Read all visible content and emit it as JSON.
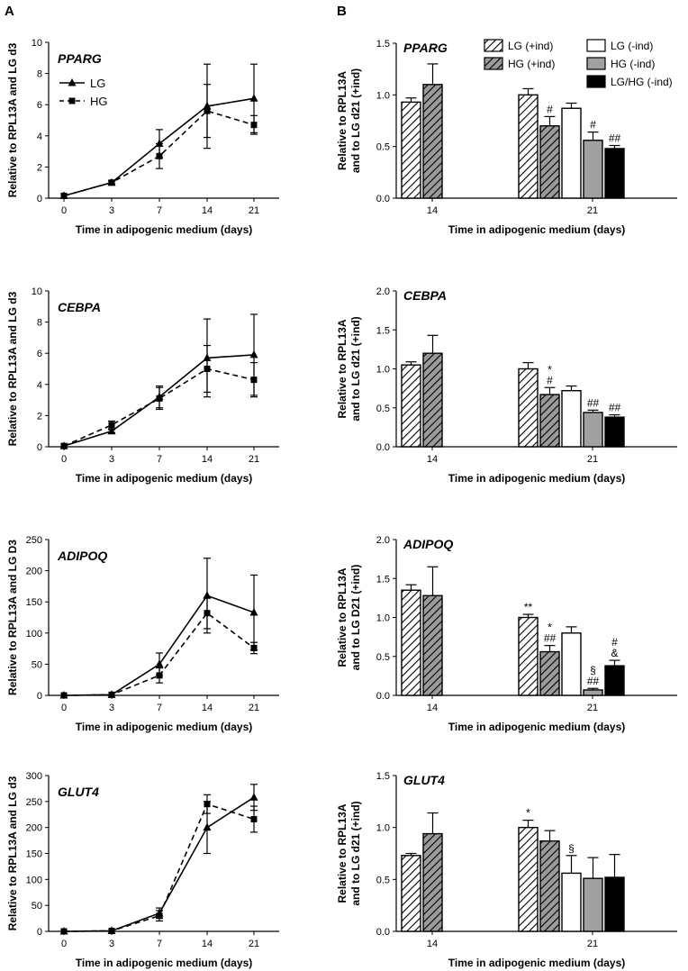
{
  "panel_labels": [
    "A",
    "B"
  ],
  "chart_data": [
    {
      "id": "A1",
      "type": "line",
      "title": "PPARG",
      "xlabel": "Time in adipogenic medium (days)",
      "ylabel": "Relative to RPL13A and LG d3",
      "x": [
        0,
        3,
        7,
        14,
        21
      ],
      "x_ticks": [
        "0",
        "3",
        "7",
        "14",
        "21"
      ],
      "ylim": [
        0,
        10
      ],
      "y_ticks": [
        0,
        2,
        4,
        6,
        8,
        10
      ],
      "legend": "top-left",
      "series": [
        {
          "name": "LG",
          "marker": "triangle",
          "dash": "solid",
          "values": [
            0.15,
            1.0,
            3.5,
            5.9,
            6.4
          ],
          "err": [
            0.05,
            0.1,
            0.9,
            2.7,
            2.2
          ]
        },
        {
          "name": "HG",
          "marker": "square",
          "dash": "dashed",
          "values": [
            0.15,
            1.0,
            2.7,
            5.6,
            4.7
          ],
          "err": [
            0.05,
            0.1,
            0.8,
            1.7,
            0.6
          ]
        }
      ]
    },
    {
      "id": "A2",
      "type": "line",
      "title": "CEBPA",
      "xlabel": "Time in adipogenic medium (days)",
      "ylabel": "Relative to RPL13A and LG d3",
      "x": [
        0,
        3,
        7,
        14,
        21
      ],
      "x_ticks": [
        "0",
        "3",
        "7",
        "14",
        "21"
      ],
      "ylim": [
        0,
        10
      ],
      "y_ticks": [
        0,
        2,
        4,
        6,
        8,
        10
      ],
      "series": [
        {
          "name": "LG",
          "marker": "triangle",
          "dash": "solid",
          "values": [
            0.05,
            1.0,
            3.2,
            5.7,
            5.9
          ],
          "err": [
            0.05,
            0.1,
            0.7,
            2.5,
            2.6
          ]
        },
        {
          "name": "HG",
          "marker": "square",
          "dash": "dashed",
          "values": [
            0.05,
            1.4,
            3.1,
            5.0,
            4.3
          ],
          "err": [
            0.05,
            0.25,
            0.7,
            1.5,
            1.1
          ]
        }
      ]
    },
    {
      "id": "A3",
      "type": "line",
      "title": "ADIPOQ",
      "xlabel": "Time in adipogenic medium (days)",
      "ylabel": "Relative to RPL13A and LG D3",
      "x": [
        0,
        3,
        7,
        14,
        21
      ],
      "x_ticks": [
        "0",
        "3",
        "7",
        "14",
        "21"
      ],
      "ylim": [
        0,
        250
      ],
      "y_ticks": [
        0,
        50,
        100,
        150,
        200,
        250
      ],
      "series": [
        {
          "name": "LG",
          "marker": "triangle",
          "dash": "solid",
          "values": [
            0,
            1,
            50,
            160,
            133
          ],
          "err": [
            0.5,
            0.5,
            18,
            60,
            60
          ]
        },
        {
          "name": "HG",
          "marker": "square",
          "dash": "dashed",
          "values": [
            0,
            1,
            32,
            132,
            76
          ],
          "err": [
            0.5,
            0.5,
            12,
            25,
            9
          ]
        }
      ]
    },
    {
      "id": "A4",
      "type": "line",
      "title": "GLUT4",
      "xlabel": "Time in adipogenic medium (days)",
      "ylabel": "Relative to RPL13A and LG d3",
      "x": [
        0,
        3,
        7,
        14,
        21
      ],
      "x_ticks": [
        "0",
        "3",
        "7",
        "14",
        "21"
      ],
      "ylim": [
        0,
        300
      ],
      "y_ticks": [
        0,
        50,
        100,
        150,
        200,
        250,
        300
      ],
      "series": [
        {
          "name": "LG",
          "marker": "triangle",
          "dash": "solid",
          "values": [
            0,
            1,
            35,
            200,
            258
          ],
          "err": [
            0.5,
            0.5,
            10,
            50,
            25
          ]
        },
        {
          "name": "HG",
          "marker": "square",
          "dash": "dashed",
          "values": [
            0,
            1,
            30,
            245,
            216
          ],
          "err": [
            0.5,
            0.5,
            10,
            18,
            25
          ]
        }
      ]
    },
    {
      "id": "B1",
      "type": "bar",
      "title": "PPARG",
      "xlabel": "Time in adipogenic medium (days)",
      "ylabel": [
        "Relative to RPL13A",
        "and to LG d21 (+ind)"
      ],
      "categories": [
        "14",
        "21"
      ],
      "ylim": [
        0,
        1.5
      ],
      "y_ticks": [
        "0.0",
        "0.5",
        "1.0",
        "1.5"
      ],
      "legend": "top-right",
      "series": [
        {
          "name": "LG (+ind)",
          "fill": "hatch-white",
          "values": [
            0.93,
            1.0
          ],
          "err": [
            0.04,
            0.06
          ],
          "ann": [
            "",
            ""
          ]
        },
        {
          "name": "HG (+ind)",
          "fill": "hatch-gray",
          "values": [
            1.1,
            0.7
          ],
          "err": [
            0.2,
            0.09
          ],
          "ann": [
            "",
            "#"
          ]
        },
        {
          "name": "LG (-ind)",
          "fill": "#ffffff",
          "values": [
            null,
            0.87
          ],
          "err": [
            0,
            0.05
          ],
          "ann": [
            "",
            ""
          ]
        },
        {
          "name": "HG (-ind)",
          "fill": "#a0a0a0",
          "values": [
            null,
            0.56
          ],
          "err": [
            0,
            0.08
          ],
          "ann": [
            "",
            "#"
          ]
        },
        {
          "name": "LG/HG (-ind)",
          "fill": "#000000",
          "values": [
            null,
            0.48
          ],
          "err": [
            0,
            0.03
          ],
          "ann": [
            "",
            "##"
          ]
        }
      ]
    },
    {
      "id": "B2",
      "type": "bar",
      "title": "CEBPA",
      "xlabel": "Time in adipogenic medium (days)",
      "ylabel": [
        "Relative to RPL13A",
        "and to LG d21 (+ind)"
      ],
      "categories": [
        "14",
        "21"
      ],
      "ylim": [
        0,
        2.0
      ],
      "y_ticks": [
        "0.0",
        "0.5",
        "1.0",
        "1.5",
        "2.0"
      ],
      "series": [
        {
          "name": "LG (+ind)",
          "fill": "hatch-white",
          "values": [
            1.05,
            1.0
          ],
          "err": [
            0.04,
            0.08
          ],
          "ann": [
            "",
            ""
          ]
        },
        {
          "name": "HG (+ind)",
          "fill": "hatch-gray",
          "values": [
            1.2,
            0.67
          ],
          "err": [
            0.23,
            0.09
          ],
          "ann": [
            "",
            "*|#"
          ]
        },
        {
          "name": "LG (-ind)",
          "fill": "#ffffff",
          "values": [
            null,
            0.72
          ],
          "err": [
            0,
            0.06
          ],
          "ann": [
            "",
            ""
          ]
        },
        {
          "name": "HG (-ind)",
          "fill": "#a0a0a0",
          "values": [
            null,
            0.44
          ],
          "err": [
            0,
            0.03
          ],
          "ann": [
            "",
            "##"
          ]
        },
        {
          "name": "LG/HG (-ind)",
          "fill": "#000000",
          "values": [
            null,
            0.38
          ],
          "err": [
            0,
            0.03
          ],
          "ann": [
            "",
            "##"
          ]
        }
      ]
    },
    {
      "id": "B3",
      "type": "bar",
      "title": "ADIPOQ",
      "xlabel": "Time in adipogenic medium (days)",
      "ylabel": [
        "Relative to RPL13A",
        "and to LG D21 (+ind)"
      ],
      "categories": [
        "14",
        "21"
      ],
      "ylim": [
        0,
        2.0
      ],
      "y_ticks": [
        "0.0",
        "0.5",
        "1.0",
        "1.5",
        "2.0"
      ],
      "series": [
        {
          "name": "LG (+ind)",
          "fill": "hatch-white",
          "values": [
            1.35,
            1.0
          ],
          "err": [
            0.07,
            0.04
          ],
          "ann": [
            "",
            "**"
          ]
        },
        {
          "name": "HG (+ind)",
          "fill": "hatch-gray",
          "values": [
            1.28,
            0.56
          ],
          "err": [
            0.37,
            0.08
          ],
          "ann": [
            "",
            "*|##"
          ]
        },
        {
          "name": "LG (-ind)",
          "fill": "#ffffff",
          "values": [
            null,
            0.8
          ],
          "err": [
            0,
            0.08
          ],
          "ann": [
            "",
            ""
          ]
        },
        {
          "name": "HG (-ind)",
          "fill": "#a0a0a0",
          "values": [
            null,
            0.07
          ],
          "err": [
            0,
            0.02
          ],
          "ann": [
            "",
            "§|##"
          ]
        },
        {
          "name": "LG/HG (-ind)",
          "fill": "#000000",
          "values": [
            null,
            0.38
          ],
          "err": [
            0,
            0.07
          ],
          "ann": [
            "",
            "#|&"
          ]
        }
      ]
    },
    {
      "id": "B4",
      "type": "bar",
      "title": "GLUT4",
      "xlabel": "Time in adipogenic medium (days)",
      "ylabel": [
        "Relative to RPL13A",
        "and to LG d21 (+ind)"
      ],
      "categories": [
        "14",
        "21"
      ],
      "ylim": [
        0,
        1.5
      ],
      "y_ticks": [
        "0.0",
        "0.5",
        "1.0",
        "1.5"
      ],
      "series": [
        {
          "name": "LG (+ind)",
          "fill": "hatch-white",
          "values": [
            0.73,
            1.0
          ],
          "err": [
            0.02,
            0.07
          ],
          "ann": [
            "",
            "*"
          ]
        },
        {
          "name": "HG (+ind)",
          "fill": "hatch-gray",
          "values": [
            0.94,
            0.87
          ],
          "err": [
            0.2,
            0.1
          ],
          "ann": [
            "",
            ""
          ]
        },
        {
          "name": "LG (-ind)",
          "fill": "#ffffff",
          "values": [
            null,
            0.56
          ],
          "err": [
            0,
            0.17
          ],
          "ann": [
            "",
            "§"
          ]
        },
        {
          "name": "HG (-ind)",
          "fill": "#a0a0a0",
          "values": [
            null,
            0.51
          ],
          "err": [
            0,
            0.2
          ],
          "ann": [
            "",
            ""
          ]
        },
        {
          "name": "LG/HG (-ind)",
          "fill": "#000000",
          "values": [
            null,
            0.52
          ],
          "err": [
            0,
            0.22
          ],
          "ann": [
            "",
            ""
          ]
        }
      ]
    }
  ]
}
